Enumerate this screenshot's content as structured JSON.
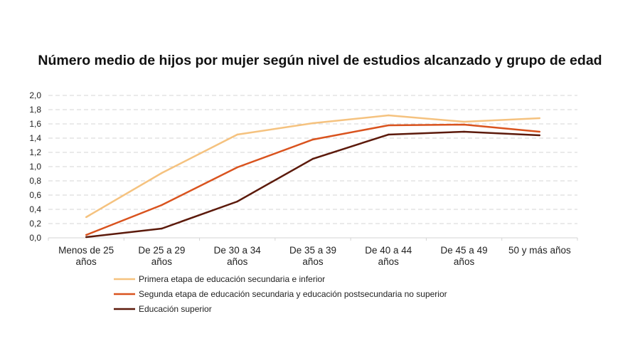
{
  "chart_data": {
    "type": "line",
    "title": "Número medio de hijos por mujer según nivel de estudios alcanzado y grupo de edad",
    "categories": [
      [
        "Menos de 25",
        "años"
      ],
      [
        "De 25 a 29",
        "años"
      ],
      [
        "De 30 a 34",
        "años"
      ],
      [
        "De 35 a 39",
        "años"
      ],
      [
        "De 40 a 44",
        "años"
      ],
      [
        "De 45 a 49",
        "años"
      ],
      [
        "50 y más años"
      ]
    ],
    "ylim": [
      0,
      2.0
    ],
    "yticks": [
      "0,0",
      "0,2",
      "0,4",
      "0,6",
      "0,8",
      "1,0",
      "1,2",
      "1,4",
      "1,6",
      "1,8",
      "2,0"
    ],
    "grid": true,
    "legend_position": "bottom",
    "series": [
      {
        "name": "Primera etapa de educación secundaria e inferior",
        "color": "#f5c27f",
        "values": [
          0.29,
          0.91,
          1.45,
          1.61,
          1.72,
          1.63,
          1.68
        ]
      },
      {
        "name": "Segunda etapa de educación secundaria y educación postsecundaria no superior",
        "color": "#d9531e",
        "values": [
          0.04,
          0.46,
          0.99,
          1.38,
          1.58,
          1.59,
          1.49
        ]
      },
      {
        "name": "Educación superior",
        "color": "#5c1a0b",
        "values": [
          0.01,
          0.13,
          0.51,
          1.11,
          1.45,
          1.49,
          1.44
        ]
      }
    ]
  }
}
